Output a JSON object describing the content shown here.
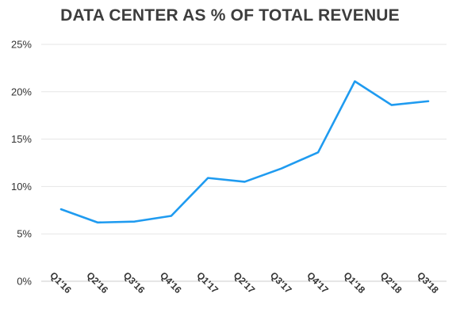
{
  "chart_data": {
    "type": "line",
    "title": "DATA CENTER AS % OF TOTAL REVENUE",
    "xlabel": "",
    "ylabel": "",
    "categories": [
      "Q1'16",
      "Q2'16",
      "Q3'16",
      "Q4'16",
      "Q1'17",
      "Q2'17",
      "Q3'17",
      "Q4'17",
      "Q1'18",
      "Q2'18",
      "Q3'18"
    ],
    "series": [
      {
        "values": [
          7.6,
          6.2,
          6.3,
          6.9,
          10.9,
          10.5,
          11.9,
          13.6,
          21.1,
          18.6,
          19.0
        ],
        "color": "#1f9bf0"
      }
    ],
    "ylim": [
      0,
      25
    ],
    "yticks": [
      0,
      5,
      10,
      15,
      20,
      25
    ],
    "ytick_labels": [
      "0%",
      "5%",
      "10%",
      "15%",
      "20%",
      "25%"
    ],
    "grid": true,
    "grid_color": "#e6e6e6",
    "legend": "none"
  }
}
